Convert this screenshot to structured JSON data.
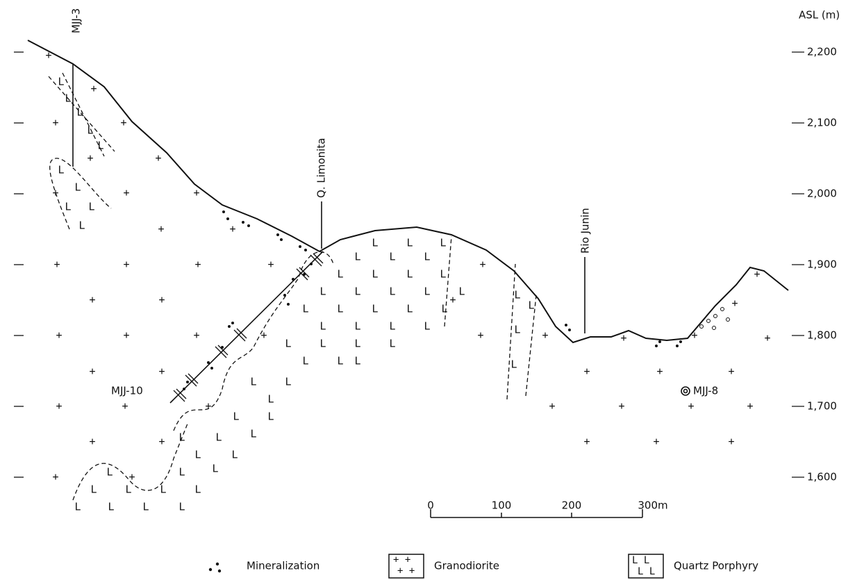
{
  "axis": {
    "title": "ASL (m)",
    "labels": [
      "2,200",
      "2,100",
      "2,000",
      "1,900",
      "1,800",
      "1,700",
      "1,600"
    ]
  },
  "labels": {
    "drill_mjj3": "MJJ-3",
    "drill_mjj10": "MJJ-10",
    "drill_mjj8": "MJJ-8",
    "creek": "Q. Limonita",
    "river": "Rio Junin"
  },
  "scale": {
    "ticks": [
      "0",
      "100",
      "200",
      "300m"
    ]
  },
  "legend": [
    "Mineralization",
    "Granodiorite",
    "Quartz Porphyry"
  ]
}
